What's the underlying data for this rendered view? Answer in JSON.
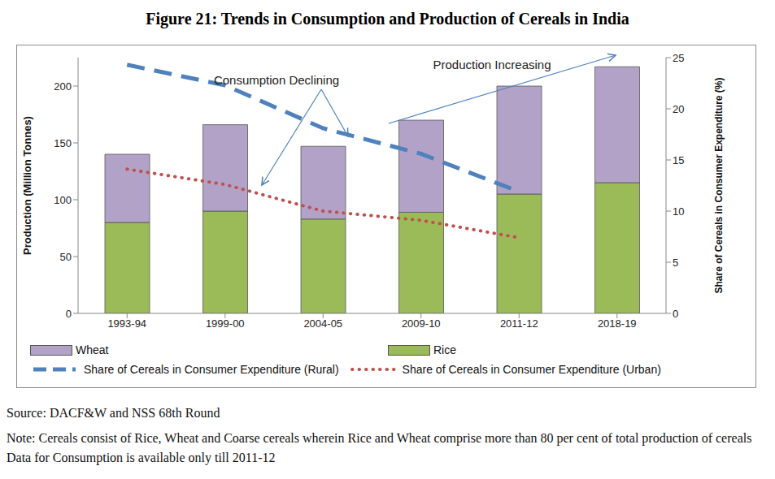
{
  "chart_data": {
    "type": "bar",
    "title": "Figure 21: Trends in Consumption and Production of Cereals in India",
    "categories": [
      "1993-94",
      "1999-00",
      "2004-05",
      "2009-10",
      "2011-12",
      "2018-19"
    ],
    "series": [
      {
        "name": "Wheat",
        "type": "bar",
        "color": "#b3a2c7",
        "values": [
          60,
          76,
          64,
          81,
          95,
          102
        ]
      },
      {
        "name": "Rice",
        "type": "bar",
        "color": "#9bbb59",
        "values": [
          80,
          90,
          83,
          89,
          105,
          115
        ]
      },
      {
        "name": "Share of Cereals in Consumer Expenditure (Rural)",
        "type": "line",
        "axis": "y2",
        "color": "#4f81bd",
        "line_style": "dashed",
        "values": [
          24.3,
          22.3,
          18.1,
          15.6,
          11.9,
          null
        ]
      },
      {
        "name": "Share of Cereals in Consumer Expenditure (Urban)",
        "type": "line",
        "axis": "y2",
        "color": "#c0504d",
        "line_style": "dotted",
        "values": [
          14.1,
          12.6,
          10.0,
          9.1,
          7.4,
          null
        ]
      }
    ],
    "stacked": true,
    "ylabel": "Production (Million Tonnes)",
    "ylim": [
      0,
      225
    ],
    "yticks": [
      0,
      50,
      100,
      150,
      200
    ],
    "y2label": "Share of Cereals in Consumer Expenditure (%)",
    "y2lim": [
      0,
      25
    ],
    "y2ticks": [
      0,
      5,
      10,
      15,
      20,
      25
    ],
    "grid": false,
    "annotations": [
      "Consumption Declining",
      "Production Increasing"
    ],
    "source": "Source: DACF&W and NSS 68th Round",
    "note": "Note: Cereals consist of Rice, Wheat and Coarse cereals wherein Rice and Wheat comprise more than 80 per cent of total production of cereals Data for Consumption is available only till 2011-12"
  }
}
